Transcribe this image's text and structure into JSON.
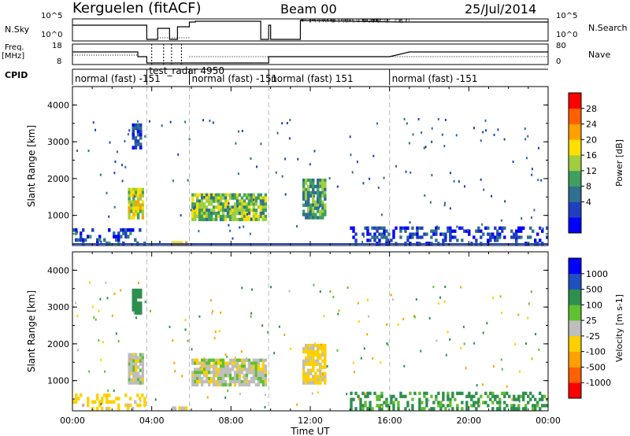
{
  "header": {
    "title": "Kerguelen (fitACF)",
    "beam": "Beam 00",
    "date": "25/Jul/2014"
  },
  "status_panels": {
    "nsky_label": "N.Sky",
    "nsky_ticks": [
      "10^5",
      "10^0"
    ],
    "nsearch_label": "N.Search",
    "nsearch_ticks": [
      "10^5",
      "10^0"
    ],
    "freq_label": "Freq.",
    "freq_unit": "[MHz]",
    "freq_ticks": [
      "18",
      "8"
    ],
    "nave_label": "Nave",
    "nave_ticks": [
      "80",
      "0"
    ],
    "cpid_label": "CPID",
    "cpid_segments": [
      {
        "label": "normal (fast) -151",
        "start": 0.0,
        "end": 3.75
      },
      {
        "label": "test_radar 4950",
        "start": 3.75,
        "end": 5.9
      },
      {
        "label": "normal (fast) -151",
        "start": 5.9,
        "end": 9.9
      },
      {
        "label": "normal (fast) 151",
        "start": 9.9,
        "end": 16.0
      },
      {
        "label": "normal (fast) -151",
        "start": 16.0,
        "end": 24.0
      }
    ]
  },
  "power_colorbar": {
    "label": "Power [dB]",
    "ticks": [
      "28",
      "24",
      "20",
      "16",
      "12",
      "8",
      "4"
    ],
    "colors": [
      "#0000ff",
      "#1f3fbf",
      "#2f6f8f",
      "#3f9f5f",
      "#9fcf3f",
      "#ffdf00",
      "#ffa000",
      "#ff6000",
      "#ff0000"
    ]
  },
  "velocity_colorbar": {
    "label": "Velocity [m s-1]",
    "ticks": [
      "1000",
      "500",
      "100",
      "25",
      "-25",
      "-100",
      "-500",
      "-1000"
    ],
    "colors": [
      "#0000ff",
      "#2050c0",
      "#2f8f4f",
      "#60c030",
      "#bebebe",
      "#ffd000",
      "#ffa000",
      "#ff6000",
      "#ff0000"
    ]
  },
  "chart_data": [
    {
      "type": "heatmap",
      "panel": "power",
      "xlabel": "",
      "ylabel": "Slant Range [km]",
      "xlim": [
        0,
        24
      ],
      "ylim": [
        180,
        4500
      ],
      "yticks": [
        "1000",
        "2000",
        "3000",
        "4000"
      ],
      "x_ticks": [
        "00:00",
        "04:00",
        "08:00",
        "12:00",
        "16:00",
        "20:00",
        "00:00"
      ],
      "cpid_boundaries_ut": [
        3.75,
        5.9,
        9.9,
        16.0
      ],
      "regions": [
        {
          "x": [
            0.0,
            3.7
          ],
          "y": [
            200,
            650
          ],
          "value": 8
        },
        {
          "x": [
            2.8,
            3.6
          ],
          "y": [
            900,
            1750
          ],
          "value": 20
        },
        {
          "x": [
            3.0,
            3.5
          ],
          "y": [
            2800,
            3500
          ],
          "value": 6
        },
        {
          "x": [
            5.0,
            5.8
          ],
          "y": [
            200,
            300
          ],
          "value": 22
        },
        {
          "x": [
            6.0,
            9.8
          ],
          "y": [
            850,
            1600
          ],
          "value": 17
        },
        {
          "x": [
            11.6,
            12.8
          ],
          "y": [
            900,
            2000
          ],
          "value": 14
        },
        {
          "x": [
            14.0,
            24.0
          ],
          "y": [
            200,
            700
          ],
          "value": 6
        }
      ]
    },
    {
      "type": "heatmap",
      "panel": "velocity",
      "xlabel": "Time UT",
      "ylabel": "Slant Range [km]",
      "xlim": [
        0,
        24
      ],
      "ylim": [
        180,
        4500
      ],
      "yticks": [
        "1000",
        "2000",
        "3000",
        "4000"
      ],
      "x_ticks": [
        "00:00",
        "04:00",
        "08:00",
        "12:00",
        "16:00",
        "20:00",
        "00:00"
      ],
      "cpid_boundaries_ut": [
        3.75,
        5.9,
        9.9,
        16.0
      ],
      "regions": [
        {
          "x": [
            0.0,
            3.7
          ],
          "y": [
            200,
            650
          ],
          "value": -60
        },
        {
          "x": [
            2.8,
            3.6
          ],
          "y": [
            900,
            1750
          ],
          "value": 0
        },
        {
          "x": [
            3.0,
            3.5
          ],
          "y": [
            2800,
            3500
          ],
          "value": 150
        },
        {
          "x": [
            5.0,
            5.8
          ],
          "y": [
            200,
            300
          ],
          "value": 0
        },
        {
          "x": [
            6.0,
            9.8
          ],
          "y": [
            850,
            1600
          ],
          "value": 0
        },
        {
          "x": [
            11.6,
            12.8
          ],
          "y": [
            900,
            2000
          ],
          "value": -40
        },
        {
          "x": [
            14.0,
            24.0
          ],
          "y": [
            200,
            700
          ],
          "value": 120
        }
      ]
    }
  ]
}
